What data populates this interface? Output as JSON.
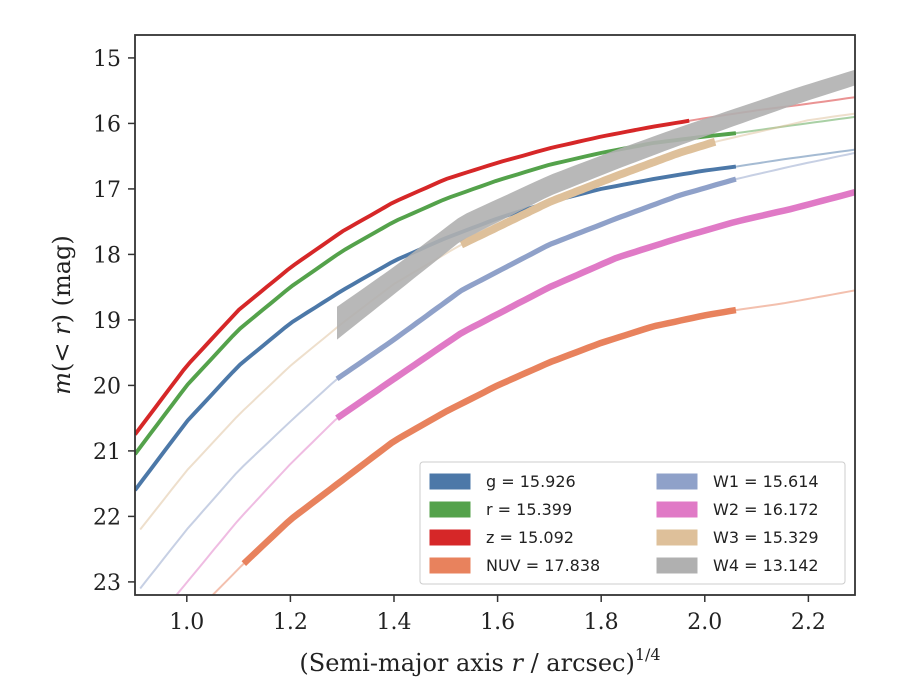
{
  "chart_data": {
    "type": "line",
    "xlabel": "(Semi-major axis r / arcsec)^1/4",
    "ylabel": "m(< r) (mag)",
    "xlim": [
      0.9,
      2.29
    ],
    "ylim": [
      23.2,
      14.65
    ],
    "y_inverted": true,
    "grid": false,
    "legend_position": "lower-right",
    "x_ticks": [
      {
        "value": 1.0,
        "label": "1.0"
      },
      {
        "value": 1.2,
        "label": "1.2"
      },
      {
        "value": 1.4,
        "label": "1.4"
      },
      {
        "value": 1.6,
        "label": "1.6"
      },
      {
        "value": 1.8,
        "label": "1.8"
      },
      {
        "value": 2.0,
        "label": "2.0"
      },
      {
        "value": 2.2,
        "label": "2.2"
      }
    ],
    "y_ticks": [
      {
        "value": 15,
        "label": "15"
      },
      {
        "value": 16,
        "label": "16"
      },
      {
        "value": 17,
        "label": "17"
      },
      {
        "value": 18,
        "label": "18"
      },
      {
        "value": 19,
        "label": "19"
      },
      {
        "value": 20,
        "label": "20"
      },
      {
        "value": 21,
        "label": "21"
      },
      {
        "value": 22,
        "label": "22"
      },
      {
        "value": 23,
        "label": "23"
      }
    ],
    "series": [
      {
        "name": "g = 15.926",
        "legend_label": "g = 15.926",
        "color": "#4c78a8",
        "solid_range": [
          0.9,
          2.06
        ],
        "x": [
          0.9,
          1.0,
          1.1,
          1.2,
          1.3,
          1.4,
          1.5,
          1.6,
          1.7,
          1.8,
          1.9,
          2.0,
          2.06,
          2.15,
          2.29
        ],
        "y": [
          21.6,
          20.55,
          19.7,
          19.05,
          18.55,
          18.1,
          17.75,
          17.45,
          17.2,
          17.0,
          16.85,
          16.72,
          16.66,
          16.55,
          16.4
        ],
        "band": 0.03
      },
      {
        "name": "r = 15.399",
        "legend_label": "r = 15.399",
        "color": "#54a24b",
        "solid_range": [
          0.9,
          2.06
        ],
        "x": [
          0.9,
          1.0,
          1.1,
          1.2,
          1.3,
          1.4,
          1.5,
          1.6,
          1.7,
          1.8,
          1.9,
          2.0,
          2.06,
          2.15,
          2.29
        ],
        "y": [
          21.05,
          20.0,
          19.15,
          18.5,
          17.95,
          17.5,
          17.15,
          16.87,
          16.63,
          16.45,
          16.3,
          16.2,
          16.15,
          16.05,
          15.9
        ],
        "band": 0.03
      },
      {
        "name": "z = 15.092",
        "legend_label": "z = 15.092",
        "color": "#d62728",
        "solid_range": [
          0.9,
          1.97
        ],
        "x": [
          0.9,
          1.0,
          1.1,
          1.2,
          1.3,
          1.4,
          1.5,
          1.6,
          1.7,
          1.8,
          1.9,
          2.0,
          2.1,
          2.2,
          2.29
        ],
        "y": [
          20.75,
          19.7,
          18.85,
          18.2,
          17.65,
          17.2,
          16.85,
          16.6,
          16.38,
          16.2,
          16.05,
          15.92,
          15.8,
          15.7,
          15.6
        ],
        "band": 0.03
      },
      {
        "name": "NUV = 17.838",
        "legend_label": "NUV = 17.838",
        "color": "#e8825d",
        "solid_range": [
          1.11,
          2.06
        ],
        "x": [
          1.05,
          1.11,
          1.2,
          1.3,
          1.4,
          1.5,
          1.6,
          1.7,
          1.8,
          1.9,
          2.0,
          2.06,
          2.15,
          2.29
        ],
        "y": [
          23.2,
          22.72,
          22.05,
          21.45,
          20.85,
          20.4,
          20.0,
          19.65,
          19.35,
          19.1,
          18.93,
          18.85,
          18.75,
          18.55
        ],
        "band": 0.05
      },
      {
        "name": "W1 = 15.614",
        "legend_label": "W1 = 15.614",
        "color": "#8fa1c9",
        "solid_range": [
          1.29,
          2.06
        ],
        "x": [
          0.91,
          1.0,
          1.1,
          1.2,
          1.29,
          1.4,
          1.53,
          1.7,
          1.83,
          1.95,
          2.06,
          2.17,
          2.29
        ],
        "y": [
          23.1,
          22.2,
          21.3,
          20.55,
          19.9,
          19.3,
          18.55,
          17.85,
          17.45,
          17.1,
          16.85,
          16.65,
          16.45
        ],
        "band": 0.04
      },
      {
        "name": "W2 = 16.172",
        "legend_label": "W2 = 16.172",
        "color": "#e07ac6",
        "solid_range": [
          1.29,
          2.29
        ],
        "x": [
          0.98,
          1.1,
          1.2,
          1.29,
          1.4,
          1.53,
          1.7,
          1.83,
          1.95,
          2.06,
          2.17,
          2.29
        ],
        "y": [
          23.2,
          22.05,
          21.2,
          20.5,
          19.9,
          19.2,
          18.5,
          18.05,
          17.75,
          17.5,
          17.3,
          17.05
        ],
        "band": 0.05
      },
      {
        "name": "W3 = 15.329",
        "legend_label": "W3 = 15.329",
        "color": "#dec09a",
        "solid_range": [
          1.53,
          2.02
        ],
        "x": [
          0.91,
          1.0,
          1.1,
          1.2,
          1.3,
          1.4,
          1.53,
          1.7,
          1.83,
          1.95,
          2.02,
          2.12,
          2.2,
          2.29
        ],
        "y": [
          22.2,
          21.3,
          20.45,
          19.7,
          19.05,
          18.45,
          17.85,
          17.2,
          16.8,
          16.45,
          16.28,
          16.1,
          15.95,
          15.85
        ],
        "band": 0.06
      },
      {
        "name": "W4 = 13.142",
        "legend_label": "W4 = 13.142",
        "color": "#b0b0b0",
        "solid_range": [
          1.29,
          2.29
        ],
        "x": [
          1.29,
          1.4,
          1.53,
          1.7,
          1.83,
          1.95,
          2.06,
          2.17,
          2.29
        ],
        "y": [
          19.05,
          18.4,
          17.6,
          16.95,
          16.55,
          16.2,
          15.9,
          15.6,
          15.3
        ],
        "band_width": [
          0.5,
          0.42,
          0.38,
          0.32,
          0.3,
          0.28,
          0.26,
          0.25,
          0.24
        ]
      }
    ],
    "legend": [
      {
        "label": "g = 15.926",
        "color": "#4c78a8"
      },
      {
        "label": "r = 15.399",
        "color": "#54a24b"
      },
      {
        "label": "z = 15.092",
        "color": "#d62728"
      },
      {
        "label": "NUV = 17.838",
        "color": "#e8825d"
      },
      {
        "label": "W1 = 15.614",
        "color": "#8fa1c9"
      },
      {
        "label": "W2 = 16.172",
        "color": "#e07ac6"
      },
      {
        "label": "W3 = 15.329",
        "color": "#dec09a"
      },
      {
        "label": "W4 = 13.142",
        "color": "#b0b0b0"
      }
    ]
  }
}
